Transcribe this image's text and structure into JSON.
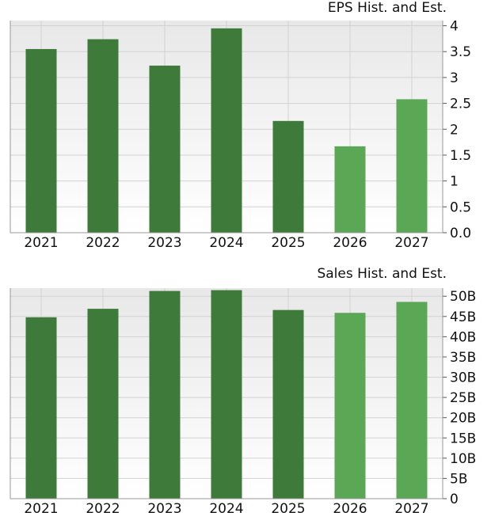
{
  "chart_data": [
    {
      "type": "bar",
      "title": "EPS Hist. and Est.",
      "categories": [
        "2021",
        "2022",
        "2023",
        "2024",
        "2025",
        "2026",
        "2027"
      ],
      "values": [
        3.55,
        3.74,
        3.23,
        3.95,
        2.16,
        1.67,
        2.58
      ],
      "estimate_flags": [
        false,
        false,
        false,
        false,
        false,
        true,
        true
      ],
      "ylim": [
        0,
        4.1
      ],
      "yticks": [
        0,
        0.5,
        1,
        1.5,
        2,
        2.5,
        3,
        3.5,
        4
      ],
      "ytick_labels": [
        "0.0",
        "0.5",
        "1",
        "1.5",
        "2",
        "2.5",
        "3",
        "3.5",
        "4"
      ],
      "y_axis_side": "right",
      "grid": true,
      "colors": {
        "historical": "#3e7a3a",
        "estimate": "#5aa855",
        "grid": "#d2d2d2",
        "bg_top": "#e8e8e8",
        "bg_bottom": "#ffffff"
      }
    },
    {
      "type": "bar",
      "title": "Sales Hist. and Est.",
      "categories": [
        "2021",
        "2022",
        "2023",
        "2024",
        "2025",
        "2026",
        "2027"
      ],
      "values": [
        44.8,
        46.9,
        51.3,
        51.5,
        46.6,
        45.9,
        48.6
      ],
      "estimate_flags": [
        false,
        false,
        false,
        false,
        false,
        true,
        true
      ],
      "ylim": [
        0,
        52
      ],
      "yticks": [
        0,
        5,
        10,
        15,
        20,
        25,
        30,
        35,
        40,
        45,
        50
      ],
      "ytick_labels": [
        "0",
        "5B",
        "10B",
        "15B",
        "20B",
        "25B",
        "30B",
        "35B",
        "40B",
        "45B",
        "50B"
      ],
      "y_axis_side": "right",
      "grid": true,
      "colors": {
        "historical": "#3e7a3a",
        "estimate": "#5aa855",
        "grid": "#d2d2d2",
        "bg_top": "#e8e8e8",
        "bg_bottom": "#ffffff"
      }
    }
  ]
}
